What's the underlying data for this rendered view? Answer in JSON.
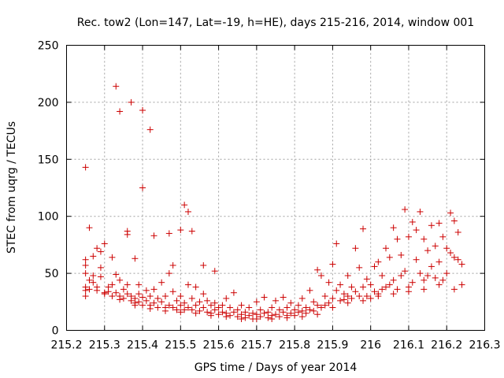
{
  "chart_data": {
    "type": "scatter",
    "title": "Rec. tow2 (Lon=147, Lat=-19, h=HE), days 215-216, 2014, window 001",
    "xlabel": "GPS time / Days of year 2014",
    "ylabel": "STEC from uqrg / TECUs",
    "xlim": [
      215.2,
      216.3
    ],
    "ylim": [
      0,
      250
    ],
    "xticks": [
      215.2,
      215.3,
      215.4,
      215.5,
      215.6,
      215.7,
      215.8,
      215.9,
      216,
      216.1,
      216.2,
      216.3
    ],
    "xtick_labels": [
      "215.2",
      "215.3",
      "215.4",
      "215.5",
      "215.6",
      "215.7",
      "215.8",
      "215.9",
      "216",
      "216.1",
      "216.2",
      "216.3"
    ],
    "yticks": [
      0,
      50,
      100,
      150,
      200,
      250
    ],
    "ytick_labels": [
      "0",
      "50",
      "100",
      "150",
      "200",
      "250"
    ],
    "grid": true,
    "marker": "+",
    "color": "#cc0000",
    "points": [
      [
        215.25,
        143
      ],
      [
        215.33,
        214
      ],
      [
        215.34,
        192
      ],
      [
        215.37,
        200
      ],
      [
        215.4,
        193
      ],
      [
        215.42,
        176
      ],
      [
        215.4,
        125
      ],
      [
        215.26,
        90
      ],
      [
        215.36,
        87
      ],
      [
        215.36,
        84
      ],
      [
        215.43,
        83
      ],
      [
        215.47,
        85
      ],
      [
        215.5,
        88
      ],
      [
        215.51,
        110
      ],
      [
        215.52,
        104
      ],
      [
        215.53,
        87
      ],
      [
        215.38,
        63
      ],
      [
        215.39,
        40
      ],
      [
        215.32,
        64
      ],
      [
        215.3,
        76
      ],
      [
        215.28,
        72
      ],
      [
        215.29,
        69
      ],
      [
        215.27,
        65
      ],
      [
        215.48,
        57
      ],
      [
        215.56,
        57
      ],
      [
        215.59,
        52
      ],
      [
        215.25,
        62
      ],
      [
        215.25,
        57
      ],
      [
        215.25,
        50
      ],
      [
        215.26,
        44
      ],
      [
        215.25,
        38
      ],
      [
        215.25,
        35
      ],
      [
        215.25,
        30
      ],
      [
        215.27,
        48
      ],
      [
        215.27,
        42
      ],
      [
        215.28,
        38
      ],
      [
        215.28,
        35
      ],
      [
        215.29,
        55
      ],
      [
        215.29,
        47
      ],
      [
        215.3,
        33
      ],
      [
        215.31,
        38
      ],
      [
        215.31,
        34
      ],
      [
        215.32,
        40
      ],
      [
        215.32,
        30
      ],
      [
        215.33,
        49
      ],
      [
        215.33,
        33
      ],
      [
        215.34,
        44
      ],
      [
        215.34,
        30
      ],
      [
        215.35,
        36
      ],
      [
        215.35,
        28
      ],
      [
        215.36,
        40
      ],
      [
        215.36,
        32
      ],
      [
        215.37,
        30
      ],
      [
        215.37,
        26
      ],
      [
        215.38,
        28
      ],
      [
        215.38,
        24
      ],
      [
        215.39,
        32
      ],
      [
        215.39,
        25
      ],
      [
        215.4,
        29
      ],
      [
        215.4,
        22
      ],
      [
        215.41,
        26
      ],
      [
        215.41,
        35
      ],
      [
        215.42,
        30
      ],
      [
        215.42,
        22
      ],
      [
        215.43,
        36
      ],
      [
        215.43,
        24
      ],
      [
        215.44,
        28
      ],
      [
        215.44,
        20
      ],
      [
        215.45,
        42
      ],
      [
        215.45,
        25
      ],
      [
        215.46,
        30
      ],
      [
        215.46,
        20
      ],
      [
        215.47,
        50
      ],
      [
        215.47,
        22
      ],
      [
        215.48,
        34
      ],
      [
        215.48,
        20
      ],
      [
        215.49,
        26
      ],
      [
        215.49,
        18
      ],
      [
        215.5,
        30
      ],
      [
        215.5,
        22
      ],
      [
        215.51,
        24
      ],
      [
        215.51,
        18
      ],
      [
        215.52,
        40
      ],
      [
        215.52,
        20
      ],
      [
        215.53,
        28
      ],
      [
        215.53,
        18
      ],
      [
        215.54,
        38
      ],
      [
        215.54,
        22
      ],
      [
        215.55,
        25
      ],
      [
        215.55,
        17
      ],
      [
        215.56,
        32
      ],
      [
        215.56,
        20
      ],
      [
        215.57,
        26
      ],
      [
        215.57,
        16
      ],
      [
        215.58,
        22
      ],
      [
        215.58,
        15
      ],
      [
        215.59,
        24
      ],
      [
        215.59,
        18
      ],
      [
        215.6,
        20
      ],
      [
        215.6,
        14
      ],
      [
        215.61,
        22
      ],
      [
        215.61,
        16
      ],
      [
        215.62,
        28
      ],
      [
        215.62,
        15
      ],
      [
        215.63,
        20
      ],
      [
        215.63,
        13
      ],
      [
        215.64,
        33
      ],
      [
        215.64,
        16
      ],
      [
        215.65,
        18
      ],
      [
        215.65,
        12
      ],
      [
        215.66,
        22
      ],
      [
        215.66,
        14
      ],
      [
        215.67,
        16
      ],
      [
        215.67,
        11
      ],
      [
        215.68,
        20
      ],
      [
        215.68,
        13
      ],
      [
        215.69,
        15
      ],
      [
        215.69,
        10
      ],
      [
        215.7,
        25
      ],
      [
        215.7,
        14
      ],
      [
        215.71,
        18
      ],
      [
        215.71,
        12
      ],
      [
        215.72,
        29
      ],
      [
        215.72,
        15
      ],
      [
        215.73,
        16
      ],
      [
        215.73,
        11
      ],
      [
        215.74,
        20
      ],
      [
        215.74,
        13
      ],
      [
        215.75,
        26
      ],
      [
        215.75,
        14
      ],
      [
        215.76,
        18
      ],
      [
        215.76,
        12
      ],
      [
        215.77,
        29
      ],
      [
        215.77,
        16
      ],
      [
        215.78,
        20
      ],
      [
        215.78,
        13
      ],
      [
        215.79,
        24
      ],
      [
        215.79,
        15
      ],
      [
        215.8,
        18
      ],
      [
        215.8,
        13
      ],
      [
        215.81,
        22
      ],
      [
        215.81,
        16
      ],
      [
        215.82,
        28
      ],
      [
        215.82,
        17
      ],
      [
        215.83,
        20
      ],
      [
        215.83,
        15
      ],
      [
        215.84,
        35
      ],
      [
        215.84,
        18
      ],
      [
        215.85,
        25
      ],
      [
        215.85,
        17
      ],
      [
        215.86,
        53
      ],
      [
        215.86,
        22
      ],
      [
        215.87,
        48
      ],
      [
        215.87,
        20
      ],
      [
        215.88,
        30
      ],
      [
        215.88,
        22
      ],
      [
        215.89,
        42
      ],
      [
        215.89,
        24
      ],
      [
        215.9,
        58
      ],
      [
        215.9,
        28
      ],
      [
        215.91,
        76
      ],
      [
        215.91,
        35
      ],
      [
        215.92,
        40
      ],
      [
        215.92,
        26
      ],
      [
        215.93,
        32
      ],
      [
        215.93,
        27
      ],
      [
        215.94,
        48
      ],
      [
        215.94,
        30
      ],
      [
        215.95,
        38
      ],
      [
        215.95,
        28
      ],
      [
        215.96,
        72
      ],
      [
        215.96,
        34
      ],
      [
        215.97,
        55
      ],
      [
        215.97,
        30
      ],
      [
        215.98,
        89
      ],
      [
        215.98,
        38
      ],
      [
        215.99,
        45
      ],
      [
        215.99,
        30
      ],
      [
        216.0,
        40
      ],
      [
        216.0,
        28
      ],
      [
        216.01,
        56
      ],
      [
        216.01,
        34
      ],
      [
        216.02,
        60
      ],
      [
        216.02,
        32
      ],
      [
        216.03,
        48
      ],
      [
        216.03,
        36
      ],
      [
        216.04,
        72
      ],
      [
        216.04,
        38
      ],
      [
        216.05,
        64
      ],
      [
        216.05,
        40
      ],
      [
        216.06,
        90
      ],
      [
        216.06,
        44
      ],
      [
        216.07,
        80
      ],
      [
        216.07,
        36
      ],
      [
        216.08,
        66
      ],
      [
        216.08,
        48
      ],
      [
        216.09,
        106
      ],
      [
        216.09,
        52
      ],
      [
        216.1,
        82
      ],
      [
        216.1,
        38
      ],
      [
        216.11,
        95
      ],
      [
        216.11,
        42
      ],
      [
        216.12,
        88
      ],
      [
        216.12,
        62
      ],
      [
        216.13,
        104
      ],
      [
        216.13,
        50
      ],
      [
        216.14,
        80
      ],
      [
        216.14,
        44
      ],
      [
        216.15,
        70
      ],
      [
        216.15,
        48
      ],
      [
        216.16,
        92
      ],
      [
        216.16,
        56
      ],
      [
        216.17,
        74
      ],
      [
        216.17,
        46
      ],
      [
        216.18,
        94
      ],
      [
        216.18,
        60
      ],
      [
        216.19,
        82
      ],
      [
        216.19,
        44
      ],
      [
        216.2,
        72
      ],
      [
        216.2,
        50
      ],
      [
        216.21,
        103
      ],
      [
        216.21,
        68
      ],
      [
        216.22,
        96
      ],
      [
        216.22,
        64
      ],
      [
        216.23,
        86
      ],
      [
        216.23,
        62
      ],
      [
        216.24,
        58
      ],
      [
        216.24,
        40
      ],
      [
        215.26,
        36
      ],
      [
        215.3,
        32
      ],
      [
        215.34,
        27
      ],
      [
        215.38,
        22
      ],
      [
        215.42,
        19
      ],
      [
        215.46,
        17
      ],
      [
        215.5,
        16
      ],
      [
        215.54,
        15
      ],
      [
        215.58,
        13
      ],
      [
        215.62,
        12
      ],
      [
        215.66,
        10
      ],
      [
        215.7,
        10
      ],
      [
        215.74,
        10
      ],
      [
        215.78,
        11
      ],
      [
        215.82,
        12
      ],
      [
        215.86,
        14
      ],
      [
        215.9,
        20
      ],
      [
        215.94,
        24
      ],
      [
        215.98,
        26
      ],
      [
        216.02,
        30
      ],
      [
        216.06,
        32
      ],
      [
        216.1,
        34
      ],
      [
        216.14,
        36
      ],
      [
        216.18,
        40
      ],
      [
        216.22,
        36
      ]
    ]
  }
}
